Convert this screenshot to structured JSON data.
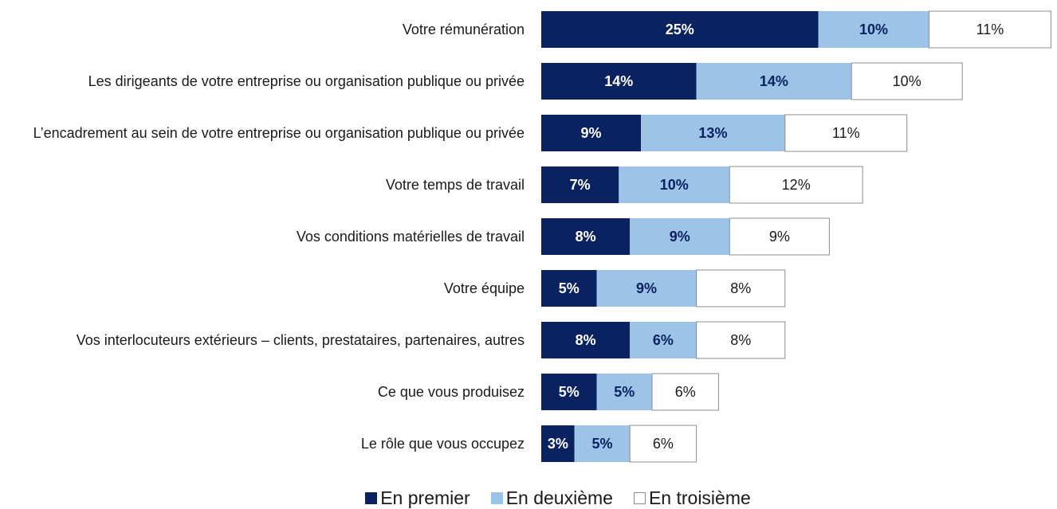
{
  "chart_data": {
    "type": "stacked-bar-horizontal",
    "categories": [
      "Votre rémunération",
      "Les dirigeants de votre entreprise ou organisation publique ou privée",
      "L’encadrement au sein de votre entreprise ou organisation publique ou privée",
      "Votre temps de travail",
      "Vos conditions matérielles de travail",
      "Votre équipe",
      "Vos interlocuteurs extérieurs – clients, prestataires, partenaires, autres",
      "Ce que vous produisez",
      "Le rôle que vous occupez"
    ],
    "series": [
      {
        "name": "En premier",
        "color": "#0b2260",
        "text_color": "#ffffff",
        "values": [
          25,
          14,
          9,
          7,
          8,
          5,
          8,
          5,
          3
        ],
        "value_labels": [
          "25%",
          "14%",
          "9%",
          "7%",
          "8%",
          "5%",
          "8%",
          "5%",
          "3%"
        ]
      },
      {
        "name": "En deuxième",
        "color": "#9dc3e6",
        "text_color": "#0b2260",
        "values": [
          10,
          14,
          13,
          10,
          9,
          9,
          6,
          5,
          5
        ],
        "value_labels": [
          "10%",
          "14%",
          "13%",
          "10%",
          "9%",
          "9%",
          "6%",
          "5%",
          "5%"
        ]
      },
      {
        "name": "En troisième",
        "color": "#ffffff",
        "text_color": "#1a1a1a",
        "values": [
          11,
          10,
          11,
          12,
          9,
          8,
          8,
          6,
          6
        ],
        "value_labels": [
          "11%",
          "10%",
          "11%",
          "12%",
          "9%",
          "8%",
          "8%",
          "6%",
          "6%"
        ]
      }
    ],
    "legend": "bottom"
  }
}
